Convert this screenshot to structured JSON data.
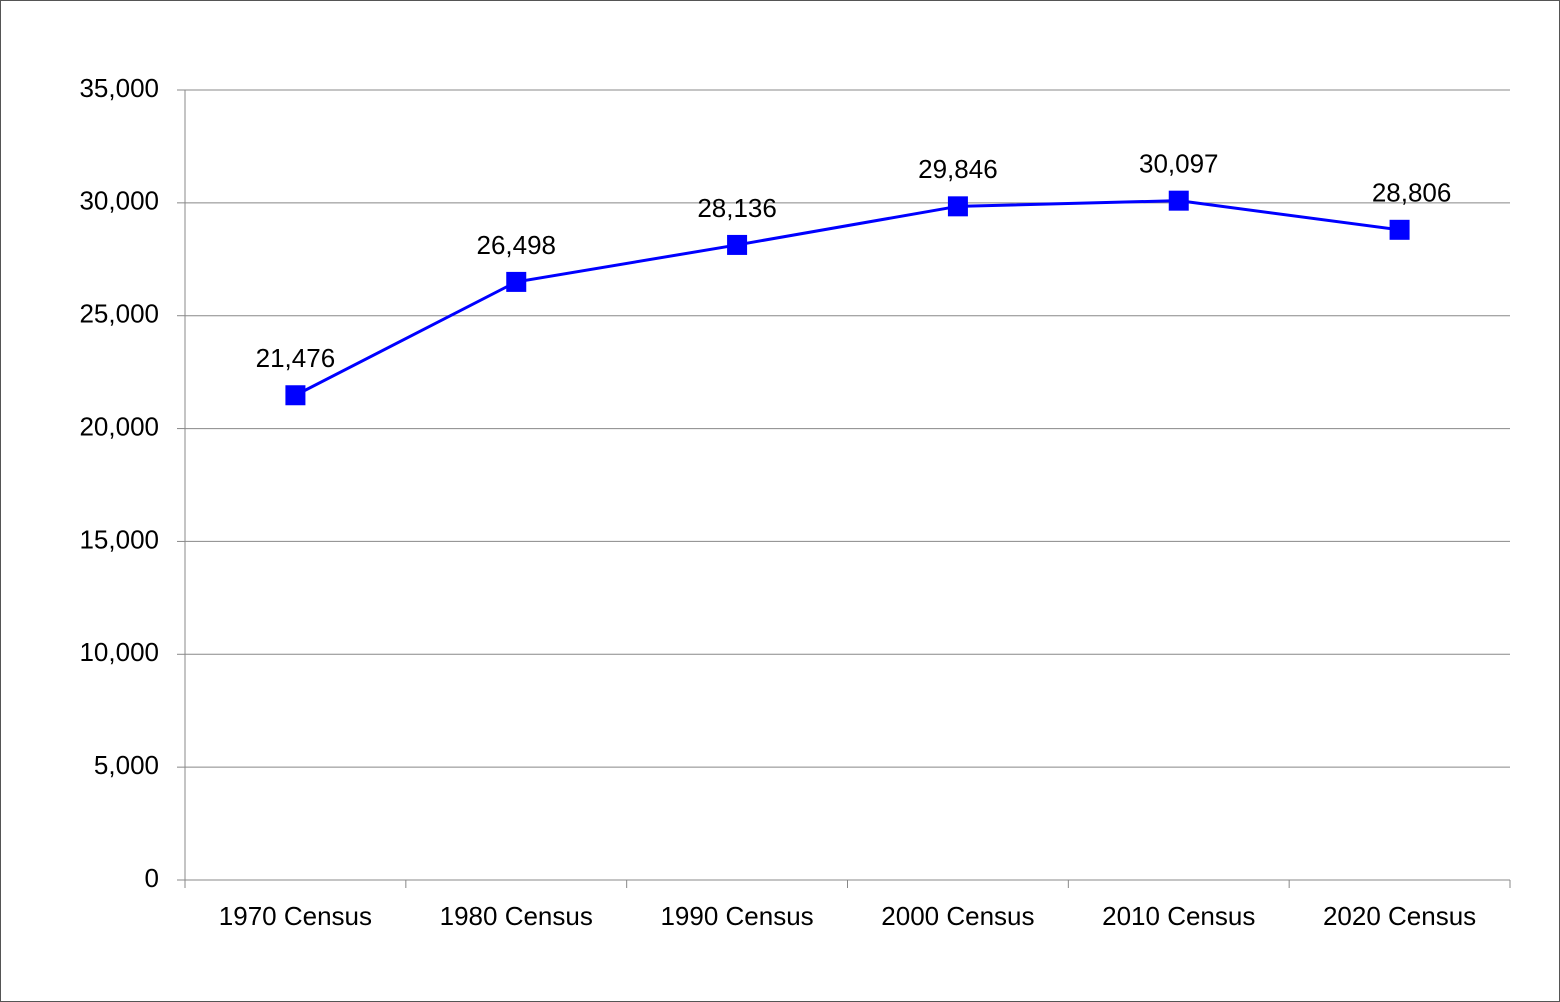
{
  "chart_data": {
    "type": "line",
    "categories": [
      "1970 Census",
      "1980 Census",
      "1990 Census",
      "2000 Census",
      "2010 Census",
      "2020 Census"
    ],
    "series": [
      {
        "color": "#0000ff",
        "values": [
          21476,
          26498,
          28136,
          29846,
          30097,
          28806
        ],
        "value_labels": [
          "21,476",
          "26,498",
          "28,136",
          "29,846",
          "30,097",
          "28,806"
        ]
      }
    ],
    "ylim": [
      0,
      35000
    ],
    "yticks": [
      0,
      {
        "value": 5000,
        "label": "5,000"
      },
      {
        "value": 10000,
        "label": "10,000"
      },
      {
        "value": 15000,
        "label": "15,000"
      },
      {
        "value": 20000,
        "label": "20,000"
      },
      {
        "value": 25000,
        "label": "25,000"
      },
      {
        "value": 30000,
        "label": "30,000"
      },
      {
        "value": 35000,
        "label": "35,000"
      }
    ],
    "grid": true
  }
}
